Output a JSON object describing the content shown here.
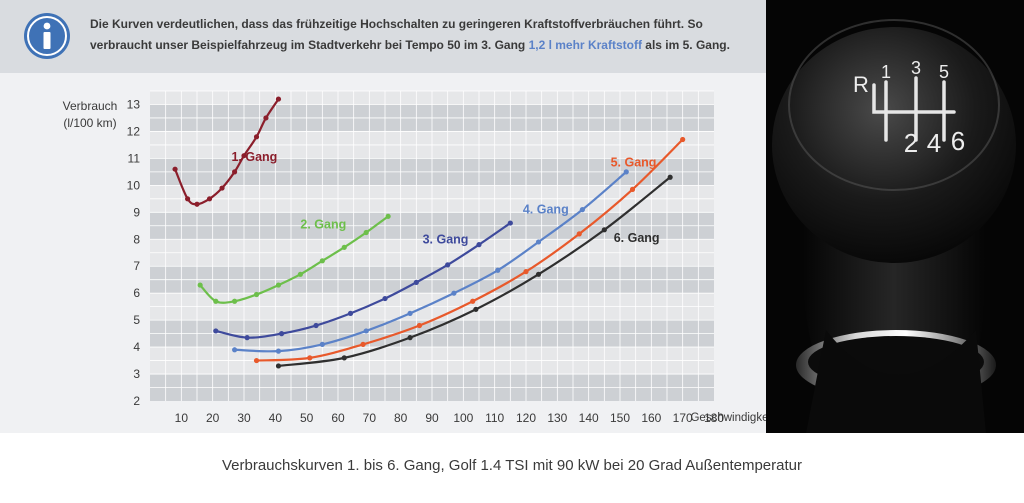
{
  "info": {
    "icon": "info-icon",
    "text_part1": "Die Kurven verdeutlichen, dass das frühzeitige Hochschalten zu geringeren Kraftstoffverbräuchen führt. So verbraucht unser Beispielfahrzeug im Stadtverkehr bei Tempo 50 im 3. Gang ",
    "text_highlight": "1,2 l mehr Kraftstoff",
    "text_part2": " als im 5. Gang.",
    "highlight_color": "#5b82c8"
  },
  "caption": "Verbrauchskurven 1. bis 6. Gang, Golf 1.4 TSI mit 90 kW bei 20 Grad Außentemperatur",
  "photo": {
    "gear_labels": [
      "R",
      "1",
      "3",
      "5",
      "2",
      "4",
      "6"
    ]
  },
  "chart_data": {
    "type": "line",
    "xlabel": "Geschwindigkeit (km/h)",
    "ylabel_line1": "Verbrauch",
    "ylabel_line2": "(l/100 km)",
    "xlim": [
      0,
      180
    ],
    "ylim": [
      2,
      13.5
    ],
    "xticks": [
      10,
      20,
      30,
      40,
      50,
      60,
      70,
      80,
      90,
      100,
      110,
      120,
      130,
      140,
      150,
      160,
      170,
      180
    ],
    "yticks": [
      2,
      3,
      4,
      5,
      6,
      7,
      8,
      9,
      10,
      11,
      12,
      13
    ],
    "grid": true,
    "series": [
      {
        "name": "1. Gang",
        "color": "#8b1e2b",
        "label_pos": [
          26,
          10.9
        ],
        "x": [
          8,
          12,
          15,
          19,
          23,
          27,
          30,
          34,
          37,
          41
        ],
        "y": [
          10.6,
          9.5,
          9.3,
          9.5,
          9.9,
          10.5,
          11.1,
          11.8,
          12.5,
          13.2
        ]
      },
      {
        "name": "2. Gang",
        "color": "#6dbf4b",
        "label_pos": [
          48,
          8.4
        ],
        "x": [
          16,
          21,
          27,
          34,
          41,
          48,
          55,
          62,
          69,
          76
        ],
        "y": [
          6.3,
          5.7,
          5.7,
          5.95,
          6.3,
          6.7,
          7.2,
          7.7,
          8.25,
          8.85
        ]
      },
      {
        "name": "3. Gang",
        "color": "#3e4a9c",
        "label_pos": [
          87,
          7.85
        ],
        "x": [
          21,
          31,
          42,
          53,
          64,
          75,
          85,
          95,
          105,
          115
        ],
        "y": [
          4.6,
          4.35,
          4.5,
          4.8,
          5.25,
          5.8,
          6.4,
          7.05,
          7.8,
          8.6
        ]
      },
      {
        "name": "4. Gang",
        "color": "#5b82c8",
        "label_pos": [
          119,
          8.95
        ],
        "x": [
          27,
          41,
          55,
          69,
          83,
          97,
          111,
          124,
          138,
          152
        ],
        "y": [
          3.9,
          3.85,
          4.1,
          4.6,
          5.25,
          6.0,
          6.85,
          7.9,
          9.1,
          10.5
        ]
      },
      {
        "name": "5. Gang",
        "color": "#e8592b",
        "label_pos": [
          147,
          10.7
        ],
        "x": [
          34,
          51,
          68,
          86,
          103,
          120,
          137,
          154,
          170
        ],
        "y": [
          3.5,
          3.6,
          4.1,
          4.8,
          5.7,
          6.8,
          8.2,
          9.85,
          11.7
        ]
      },
      {
        "name": "6. Gang",
        "color": "#2f2f2f",
        "label_pos": [
          148,
          7.9
        ],
        "x": [
          41,
          62,
          83,
          104,
          124,
          145,
          166
        ],
        "y": [
          3.3,
          3.6,
          4.35,
          5.4,
          6.7,
          8.35,
          10.3
        ]
      }
    ]
  }
}
